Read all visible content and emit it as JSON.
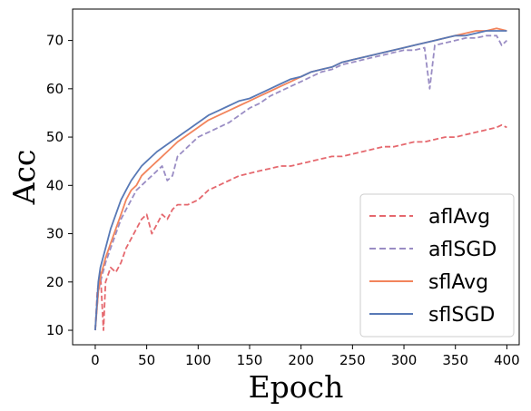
{
  "chart_data": {
    "type": "line",
    "title": "",
    "xlabel": "Epoch",
    "ylabel": "Acc",
    "xlim": [
      -22,
      412
    ],
    "ylim": [
      7,
      76.5
    ],
    "xticks": [
      0,
      50,
      100,
      150,
      200,
      250,
      300,
      350,
      400
    ],
    "yticks": [
      10,
      20,
      30,
      40,
      50,
      60,
      70
    ],
    "grid": false,
    "legend_position": "bottom-right",
    "series": [
      {
        "name": "aflAvg",
        "color": "#E5686E",
        "style": "dashed",
        "x": [
          0,
          2,
          5,
          8,
          10,
          15,
          20,
          25,
          30,
          35,
          40,
          45,
          50,
          55,
          60,
          65,
          70,
          75,
          80,
          90,
          100,
          110,
          120,
          130,
          140,
          150,
          160,
          170,
          180,
          190,
          200,
          210,
          220,
          230,
          240,
          250,
          260,
          270,
          280,
          290,
          300,
          310,
          320,
          330,
          340,
          350,
          360,
          370,
          380,
          390,
          395,
          400
        ],
        "y": [
          10,
          18,
          22,
          10,
          20,
          23,
          22,
          24,
          27,
          29,
          31,
          33,
          34,
          30,
          32,
          34,
          33,
          35,
          36,
          36,
          37,
          39,
          40,
          41,
          42,
          42.5,
          43,
          43.5,
          44,
          44,
          44.5,
          45,
          45.5,
          46,
          46,
          46.5,
          47,
          47.5,
          48,
          48,
          48.5,
          49,
          49,
          49.5,
          50,
          50,
          50.5,
          51,
          51.5,
          52,
          52.5,
          52
        ]
      },
      {
        "name": "aflSGD",
        "color": "#9A8DC4",
        "style": "dashed",
        "x": [
          0,
          3,
          5,
          10,
          15,
          20,
          25,
          30,
          35,
          40,
          45,
          50,
          55,
          60,
          65,
          70,
          75,
          80,
          85,
          90,
          95,
          100,
          110,
          120,
          130,
          140,
          150,
          160,
          170,
          180,
          190,
          200,
          210,
          220,
          230,
          240,
          250,
          260,
          270,
          280,
          290,
          300,
          310,
          320,
          325,
          330,
          340,
          350,
          360,
          370,
          380,
          390,
          395,
          400
        ],
        "y": [
          10,
          18,
          20,
          24,
          27,
          30,
          33,
          35,
          37,
          39,
          40,
          41,
          42,
          43,
          44,
          41,
          42,
          46,
          47,
          48,
          49,
          50,
          51,
          52,
          53,
          54.5,
          56,
          57,
          58.5,
          59.5,
          60.5,
          61.5,
          62.5,
          63.5,
          64,
          65,
          65.5,
          66,
          66.5,
          67,
          67.5,
          68,
          68,
          68.5,
          60,
          69,
          69.5,
          70,
          70.5,
          70.5,
          71,
          71,
          69,
          70
        ]
      },
      {
        "name": "sflAvg",
        "color": "#F2845C",
        "style": "solid",
        "x": [
          0,
          3,
          5,
          10,
          15,
          20,
          25,
          30,
          35,
          40,
          45,
          50,
          55,
          60,
          70,
          80,
          90,
          100,
          110,
          120,
          130,
          140,
          150,
          160,
          170,
          180,
          190,
          200,
          210,
          220,
          230,
          240,
          250,
          260,
          270,
          280,
          290,
          300,
          310,
          320,
          330,
          340,
          350,
          360,
          370,
          380,
          390,
          400
        ],
        "y": [
          10,
          18,
          21,
          25,
          28,
          31,
          34,
          37,
          39,
          40,
          42,
          43,
          44,
          45,
          47,
          49,
          50.5,
          52,
          53.5,
          54.5,
          55.5,
          56.5,
          57.5,
          58.5,
          59.5,
          60.5,
          61.5,
          62.5,
          63.5,
          64,
          64.5,
          65.5,
          66,
          66.5,
          67,
          67.5,
          68,
          68.5,
          69,
          69.5,
          70,
          70.5,
          71,
          71.5,
          72,
          72,
          72.5,
          72
        ]
      },
      {
        "name": "sflSGD",
        "color": "#5879B6",
        "style": "solid",
        "x": [
          0,
          3,
          5,
          10,
          15,
          20,
          25,
          30,
          35,
          40,
          45,
          50,
          55,
          60,
          70,
          80,
          90,
          100,
          110,
          120,
          130,
          140,
          150,
          160,
          170,
          180,
          190,
          200,
          210,
          220,
          230,
          240,
          250,
          260,
          270,
          280,
          290,
          300,
          310,
          320,
          330,
          340,
          350,
          360,
          370,
          380,
          390,
          400
        ],
        "y": [
          10,
          20,
          23,
          27,
          31,
          34,
          37,
          39,
          41,
          42.5,
          44,
          45,
          46,
          47,
          48.5,
          50,
          51.5,
          53,
          54.5,
          55.5,
          56.5,
          57.5,
          58,
          59,
          60,
          61,
          62,
          62.5,
          63.5,
          64,
          64.5,
          65.5,
          66,
          66.5,
          67,
          67.5,
          68,
          68.5,
          69,
          69.5,
          70,
          70.5,
          71,
          71,
          71.5,
          72,
          72,
          72
        ]
      }
    ]
  }
}
